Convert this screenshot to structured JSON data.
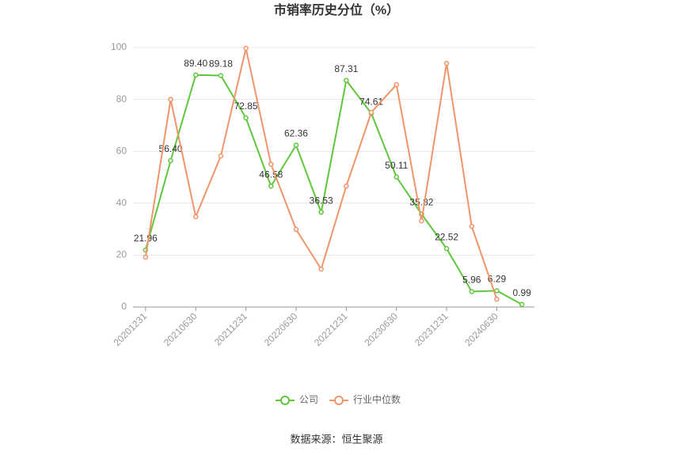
{
  "chart_data": {
    "type": "line",
    "title": "市销率历史分位（%）",
    "categories": [
      "20201231",
      null,
      "20210630",
      null,
      "20211231",
      null,
      "20220630",
      null,
      "20221231",
      null,
      "20230630",
      null,
      "20231231",
      null,
      "20240630",
      null
    ],
    "series": [
      {
        "name": "公司",
        "color": "#5ec73b",
        "values": [
          21.96,
          56.4,
          89.4,
          89.18,
          72.85,
          46.58,
          62.36,
          36.53,
          87.31,
          74.61,
          50.11,
          35.82,
          22.52,
          5.96,
          6.29,
          0.99
        ],
        "value_labels": [
          "21.96",
          "56.40",
          "89.40",
          "89.18",
          "72.85",
          "46.58",
          "62.36",
          "36.53",
          "87.31",
          "74.61",
          "50.11",
          "35.82",
          "22.52",
          "5.96",
          "6.29",
          "0.99"
        ]
      },
      {
        "name": "行业中位数",
        "color": "#f0956a",
        "values": [
          19.2,
          80,
          34.8,
          58.2,
          99.7,
          55,
          29.9,
          14.6,
          46.6,
          75,
          85.7,
          33.2,
          93.9,
          31.1,
          3,
          null
        ]
      }
    ],
    "ylim": [
      0,
      100
    ],
    "yticks": [
      0,
      20,
      40,
      60,
      80,
      100
    ],
    "grid": true,
    "legend": "bottom",
    "source": "数据来源：恒生聚源"
  }
}
